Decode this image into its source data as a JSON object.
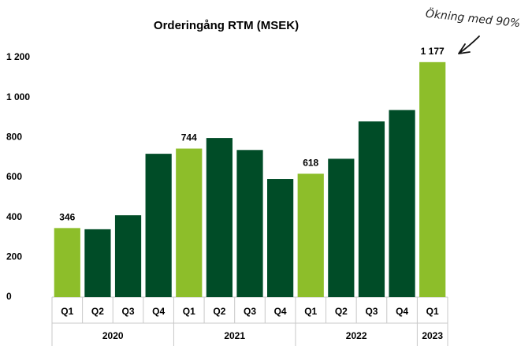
{
  "chart_data": {
    "type": "bar",
    "title": "Orderingång RTM (MSEK)",
    "annotation": "Ökning med 90%",
    "groups": [
      {
        "name": "2020",
        "categories": [
          "Q1",
          "Q2",
          "Q3",
          "Q4"
        ]
      },
      {
        "name": "2021",
        "categories": [
          "Q1",
          "Q2",
          "Q3",
          "Q4"
        ]
      },
      {
        "name": "2022",
        "categories": [
          "Q1",
          "Q2",
          "Q3",
          "Q4"
        ]
      },
      {
        "name": "2023",
        "categories": [
          "Q1"
        ]
      }
    ],
    "values": [
      346,
      340,
      410,
      718,
      744,
      797,
      737,
      592,
      618,
      693,
      880,
      937,
      1177
    ],
    "value_labels": [
      "346",
      null,
      null,
      null,
      "744",
      null,
      null,
      null,
      "618",
      null,
      null,
      null,
      "1 177"
    ],
    "colors": [
      "#8dbe2a",
      "#004c27",
      "#004c27",
      "#004c27",
      "#8dbe2a",
      "#004c27",
      "#004c27",
      "#004c27",
      "#8dbe2a",
      "#004c27",
      "#004c27",
      "#004c27",
      "#8dbe2a"
    ],
    "ylim": [
      0,
      1200
    ],
    "yticks": [
      0,
      200,
      400,
      600,
      800,
      {
        "value": 1000,
        "label": "1 000"
      },
      {
        "value": 1200,
        "label": "1 200"
      }
    ],
    "grid": false
  }
}
